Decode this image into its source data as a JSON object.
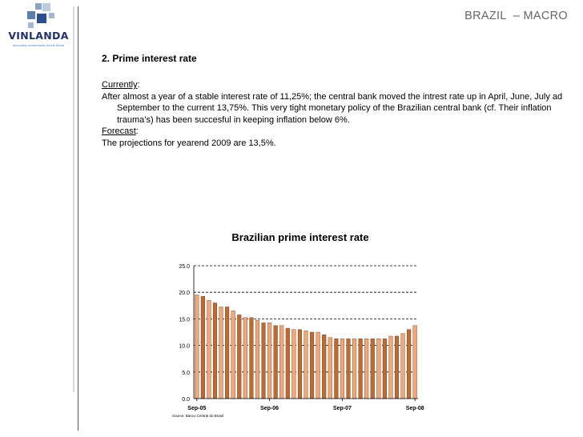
{
  "logo": {
    "name": "VINLANDA",
    "tagline": "Innovative investments for the future",
    "colors": [
      "#8aa2c4",
      "#bccbde",
      "#5d7fae",
      "#2c4f8f",
      "#a4b7d2"
    ]
  },
  "header": {
    "title": "BRAZIL  – MACRO"
  },
  "section": {
    "title": "2. Prime interest rate",
    "currently_label": "Currently",
    "currently_text": "After almost a year of a stable interest rate of 11,25%; the central bank moved the intrest rate up in April, June, July ad September to the current 13,75%.  This very tight monetary policy of the Brazilian central bank (cf. Their inflation trauma’s) has been succesful in keeping inflation below 6%.",
    "forecast_label": "Forecast",
    "forecast_text": "The projections for yearend 2009 are 13,5%."
  },
  "chart_data": {
    "type": "bar",
    "title": "Brazilian prime interest rate",
    "xlabel": "",
    "ylabel": "",
    "ylim": [
      0,
      25
    ],
    "yticks": [
      "0.0",
      "5.0",
      "10.0",
      "15.0",
      "20.0",
      "25.0"
    ],
    "grid": true,
    "source_note": "Source: Banco Central do Brasil",
    "categories": [
      "Sep-05",
      "Oct-05",
      "Nov-05",
      "Dec-05",
      "Jan-06",
      "Feb-06",
      "Mar-06",
      "Apr-06",
      "May-06",
      "Jun-06",
      "Jul-06",
      "Aug-06",
      "Sep-06",
      "Oct-06",
      "Nov-06",
      "Dec-06",
      "Jan-07",
      "Feb-07",
      "Mar-07",
      "Apr-07",
      "May-07",
      "Jun-07",
      "Jul-07",
      "Aug-07",
      "Sep-07",
      "Oct-07",
      "Nov-07",
      "Dec-07",
      "Jan-08",
      "Feb-08",
      "Mar-08",
      "Apr-08",
      "May-08",
      "Jun-08",
      "Jul-08",
      "Aug-08",
      "Sep-08"
    ],
    "visible_tick_labels": [
      "Sep-05",
      "Sep-06",
      "Sep-07",
      "Sep-08"
    ],
    "values": [
      19.5,
      19.25,
      18.5,
      18.0,
      17.25,
      17.25,
      16.5,
      15.75,
      15.25,
      15.25,
      14.75,
      14.25,
      14.25,
      13.75,
      13.75,
      13.25,
      13.0,
      13.0,
      12.75,
      12.5,
      12.5,
      12.0,
      11.5,
      11.25,
      11.25,
      11.25,
      11.25,
      11.25,
      11.25,
      11.25,
      11.25,
      11.25,
      11.75,
      11.75,
      12.25,
      13.0,
      13.75
    ],
    "colors": {
      "bar_dark": "#c06a2e",
      "bar_light": "#f1a777",
      "bar_edge": "#4a2a18"
    }
  }
}
